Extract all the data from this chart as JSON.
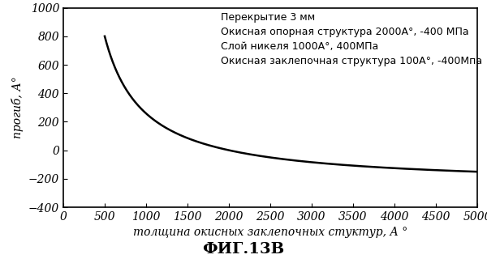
{
  "title": "ФИГ.13В",
  "xlabel": "толщина окисных заклепочных стуктур, А °",
  "ylabel": "прогиб, А°",
  "annotation_lines": [
    "Перекрытие 3 мм",
    "Окисная опорная структура 2000A°, -400 МПа",
    "Слой никеля 1000A°, 400МПа",
    "Окисная заклепочная структура 100A°, -400Мпа"
  ],
  "xlim": [
    0,
    5000
  ],
  "ylim": [
    -400,
    1000
  ],
  "xticks": [
    0,
    500,
    1000,
    1500,
    2000,
    2500,
    3000,
    3500,
    4000,
    4500,
    5000
  ],
  "yticks": [
    -400,
    -200,
    0,
    200,
    400,
    600,
    800,
    1000
  ],
  "curve_color": "#000000",
  "line_width": 1.8,
  "background_color": "#ffffff",
  "text_color": "#000000",
  "title_fontsize": 14,
  "label_fontsize": 10,
  "annotation_fontsize": 9,
  "tick_fontsize": 10,
  "curve_a": 492187.5,
  "curve_b": -31.25,
  "curve_c": -250,
  "x_start": 500,
  "x_end": 5000
}
